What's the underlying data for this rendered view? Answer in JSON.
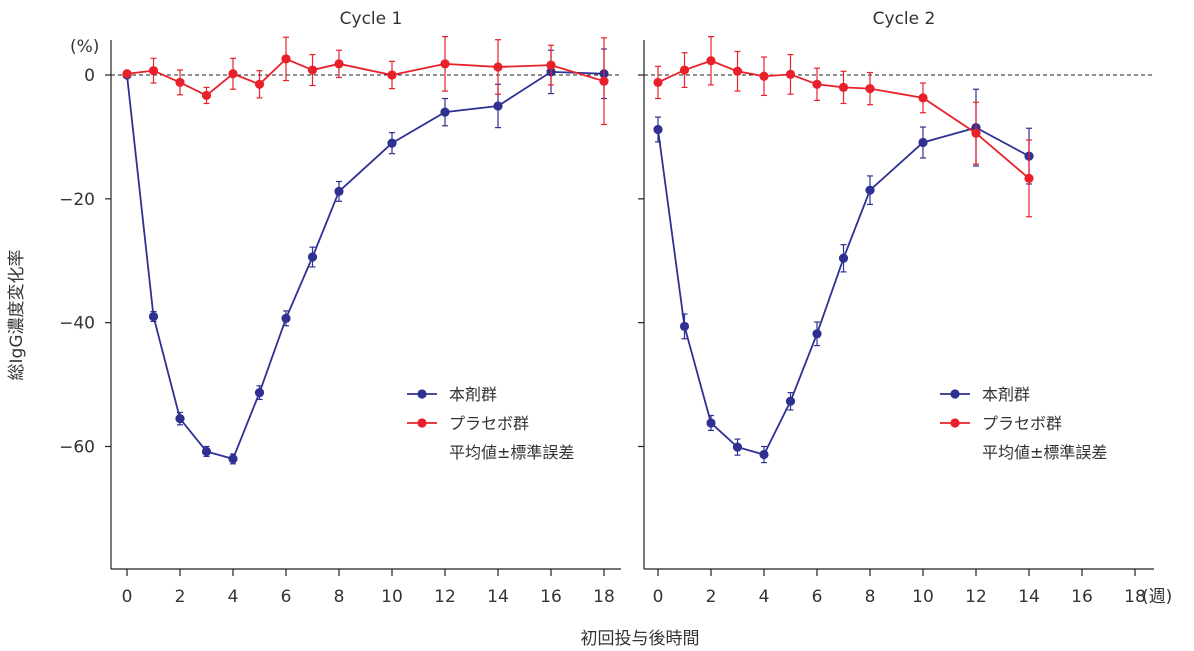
{
  "chart_data": {
    "type": "line",
    "ylabel": "総IgG濃度変化率",
    "yunit": "(%)",
    "xlabel": "初回投与後時間",
    "xunit": "(週)",
    "yticks": [
      0,
      -20,
      -40,
      -60
    ],
    "ylim": [
      -80,
      6
    ],
    "xticks": [
      0,
      2,
      4,
      6,
      8,
      10,
      12,
      14,
      16,
      18
    ],
    "xlim": [
      -0.6,
      18.8
    ],
    "legend_position": "lower-right",
    "legend_note": "平均値±標準誤差",
    "colors": {
      "drug": "#2e3192",
      "placebo": "#e8202a"
    },
    "panels": [
      {
        "title": "Cycle 1",
        "series": [
          {
            "name": "本剤群",
            "color": "#2e3192",
            "x": [
              0,
              1,
              2,
              3,
              4,
              5,
              6,
              7,
              8,
              10,
              12,
              14,
              16,
              18
            ],
            "y": [
              0,
              -39,
              -55.5,
              -60.8,
              -62,
              -51.3,
              -39.3,
              -29.4,
              -18.8,
              -11,
              -6,
              -5,
              0.5,
              0.2
            ],
            "err": [
              0,
              0.8,
              1,
              0.8,
              0.8,
              1.1,
              1.2,
              1.6,
              1.6,
              1.7,
              2.2,
              3.5,
              3.5,
              4.0
            ]
          },
          {
            "name": "プラセボ群",
            "color": "#e8202a",
            "x": [
              0,
              1,
              2,
              3,
              4,
              5,
              6,
              7,
              8,
              10,
              12,
              14,
              16,
              18
            ],
            "y": [
              0.2,
              0.7,
              -1.2,
              -3.3,
              0.2,
              -1.5,
              2.6,
              0.8,
              1.8,
              0,
              1.8,
              1.3,
              1.6,
              -1
            ],
            "err": [
              0,
              2,
              2,
              1.3,
              2.5,
              2.2,
              3.5,
              2.5,
              2.2,
              2.2,
              4.4,
              4.4,
              3.2,
              7.0
            ]
          }
        ]
      },
      {
        "title": "Cycle 2",
        "series": [
          {
            "name": "本剤群",
            "color": "#2e3192",
            "x": [
              0,
              1,
              2,
              3,
              4,
              5,
              6,
              7,
              8,
              10,
              12,
              14
            ],
            "y": [
              -8.8,
              -40.6,
              -56.2,
              -60.1,
              -61.3,
              -52.7,
              -41.8,
              -29.6,
              -18.6,
              -10.9,
              -8.5,
              -13.1
            ],
            "err": [
              2,
              2,
              1.2,
              1.3,
              1.3,
              1.4,
              1.9,
              2.2,
              2.3,
              2.5,
              6.2,
              4.5
            ]
          },
          {
            "name": "プラセボ群",
            "color": "#e8202a",
            "x": [
              0,
              1,
              2,
              3,
              4,
              5,
              6,
              7,
              8,
              10,
              12,
              14
            ],
            "y": [
              -1.2,
              0.8,
              2.3,
              0.6,
              -0.2,
              0.1,
              -1.5,
              -2,
              -2.2,
              -3.7,
              -9.4,
              -16.7
            ],
            "err": [
              2.6,
              2.8,
              3.9,
              3.2,
              3.1,
              3.2,
              2.6,
              2.6,
              2.6,
              2.4,
              5.0,
              6.2
            ]
          }
        ]
      }
    ]
  }
}
